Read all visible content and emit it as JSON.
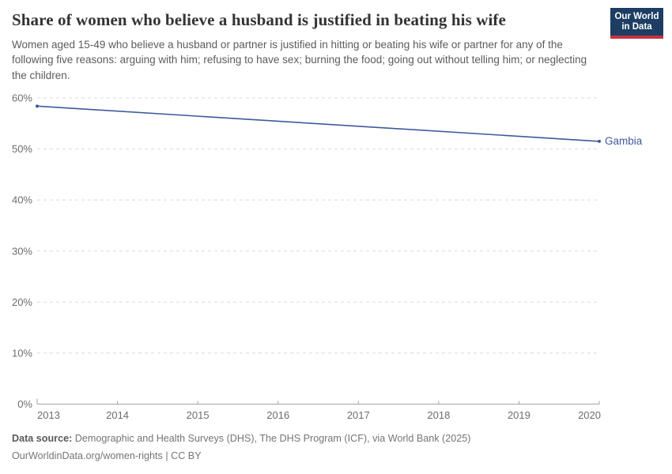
{
  "header": {
    "title": "Share of women who believe a husband is justified in beating his wife",
    "logo": {
      "line1": "Our World",
      "line2": "in Data"
    },
    "logo_colors": {
      "background": "#1d3d63",
      "stripe": "#c8313e"
    }
  },
  "subtitle": "Women aged 15-49 who believe a husband or partner is justified in hitting or beating his wife or partner for any of the following five reasons: arguing with him; refusing to have sex; burning the food; going out without telling him; or neglecting the children.",
  "chart_data": {
    "type": "line",
    "title": "Share of women who believe a husband is justified in beating his wife",
    "xlabel": "",
    "ylabel": "",
    "unit": "%",
    "xlim": [
      2013,
      2020
    ],
    "ylim": [
      0,
      60
    ],
    "x_ticks": [
      2013,
      2014,
      2015,
      2016,
      2017,
      2018,
      2019,
      2020
    ],
    "y_ticks": [
      0,
      10,
      20,
      30,
      40,
      50,
      60
    ],
    "grid": "horizontal-dashed",
    "legend_position": "end-of-line-label",
    "series": [
      {
        "name": "Gambia",
        "color": "#3d5a9e",
        "x": [
          2013,
          2020
        ],
        "values": [
          58.4,
          51.5
        ]
      }
    ],
    "grid_color": "#d9d9d9",
    "axis_color": "#a3a3a3",
    "tick_label_color": "#6d6d6d"
  },
  "footer": {
    "data_source_label": "Data source:",
    "data_source": " Demographic and Health Surveys (DHS), The DHS Program (ICF), via World Bank (2025)",
    "citation": "OurWorldinData.org/women-rights | CC BY"
  }
}
